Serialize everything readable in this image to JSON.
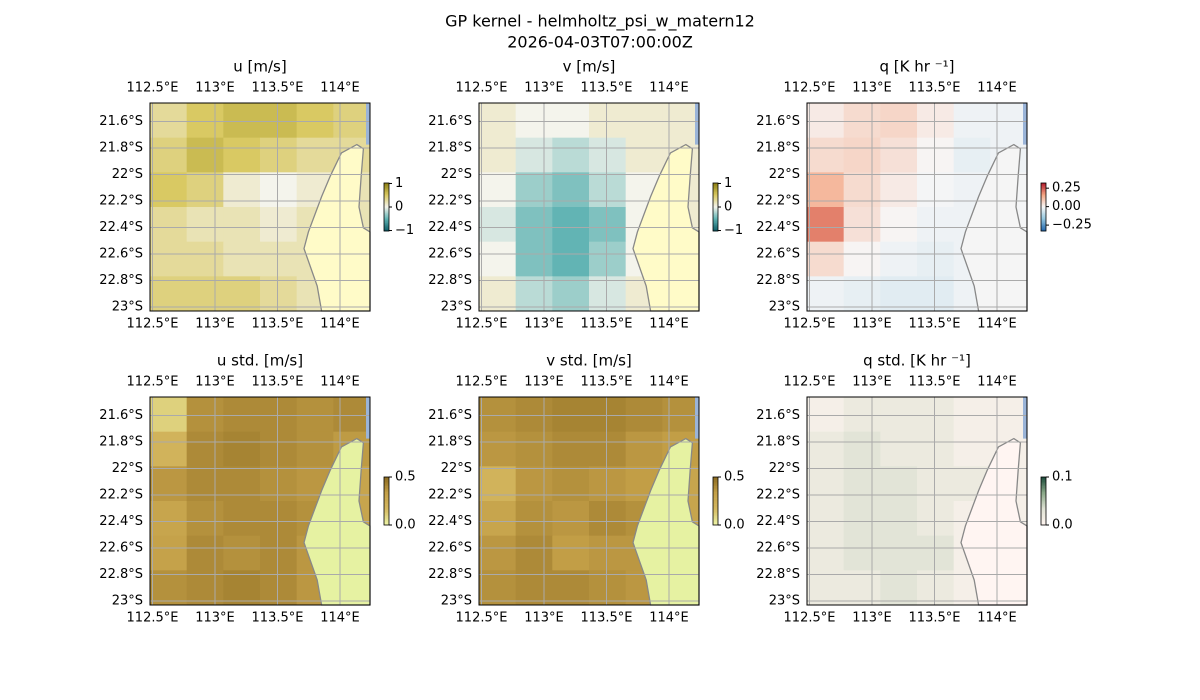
{
  "figure": {
    "title": "GP kernel - helmholtz_psi_w_matern12",
    "subtitle": "2026-04-03T07:00:00Z"
  },
  "chart_data": [
    {
      "type": "heatmap",
      "title": "u [m/s]",
      "land_color": "#fffbc8",
      "cmap": [
        "#0b5b66",
        "#5fb3b3",
        "#f4f4ec",
        "#d8c860",
        "#8a7d10"
      ],
      "clim": [
        -1.02,
        1.02
      ],
      "cticks": [
        {
          "value": 1,
          "label": "1"
        },
        0,
        {
          "value": -1,
          "label": "−1"
        }
      ],
      "xlim": [
        112.48,
        114.24
      ],
      "ylim": [
        -23.03,
        -21.46
      ],
      "xticks": [
        {
          "value": 112.5,
          "label": "112.5°E"
        },
        {
          "value": 113,
          "label": "113°E"
        },
        {
          "value": 113.5,
          "label": "113.5°E"
        },
        {
          "value": 114,
          "label": "114°E"
        }
      ],
      "yticks": [
        {
          "value": -21.6,
          "label": "21.6°S"
        },
        {
          "value": -21.8,
          "label": "21.8°S"
        },
        {
          "value": -22,
          "label": "22°S"
        },
        {
          "value": -22.2,
          "label": "22.2°S"
        },
        {
          "value": -22.4,
          "label": "22.4°S"
        },
        {
          "value": -22.6,
          "label": "22.6°S"
        },
        {
          "value": -22.8,
          "label": "22.8°S"
        },
        {
          "value": -23,
          "label": "23°S"
        }
      ],
      "values": [
        [
          0.3,
          0.5,
          0.6,
          0.6,
          0.5,
          0.4
        ],
        [
          0.4,
          0.6,
          0.5,
          0.4,
          0.3,
          0.3
        ],
        [
          0.5,
          0.4,
          0.1,
          0.0,
          0.1,
          0.2
        ],
        [
          0.3,
          0.2,
          0.2,
          0.1,
          0.2,
          0.2
        ],
        [
          0.3,
          0.3,
          0.2,
          0.2,
          0.2,
          0.2
        ],
        [
          0.4,
          0.4,
          0.4,
          0.3,
          0.2,
          0.2
        ]
      ]
    },
    {
      "type": "heatmap",
      "title": "v [m/s]",
      "land_color": "#fffbc8",
      "cmap": [
        "#0b5b66",
        "#5fb3b3",
        "#f4f4ec",
        "#d8c860",
        "#8a7d10"
      ],
      "clim": [
        -1.02,
        1.02
      ],
      "cticks": [
        {
          "value": 1,
          "label": "1"
        },
        0,
        {
          "value": -1,
          "label": "−1"
        }
      ],
      "xlim": [
        112.48,
        114.24
      ],
      "ylim": [
        -23.03,
        -21.46
      ],
      "xticks": [
        {
          "value": 112.5,
          "label": "112.5°E"
        },
        {
          "value": 113,
          "label": "113°E"
        },
        {
          "value": 113.5,
          "label": "113.5°E"
        },
        {
          "value": 114,
          "label": "114°E"
        }
      ],
      "yticks": [
        {
          "value": -21.6,
          "label": "21.6°S"
        },
        {
          "value": -21.8,
          "label": "21.8°S"
        },
        {
          "value": -22,
          "label": "22°S"
        },
        {
          "value": -22.2,
          "label": "22.2°S"
        },
        {
          "value": -22.4,
          "label": "22.4°S"
        },
        {
          "value": -22.6,
          "label": "22.6°S"
        },
        {
          "value": -22.8,
          "label": "22.8°S"
        },
        {
          "value": -23,
          "label": "23°S"
        }
      ],
      "values": [
        [
          0.1,
          0.0,
          0.0,
          0.1,
          0.1,
          0.1
        ],
        [
          0.1,
          -0.1,
          -0.2,
          -0.1,
          0.1,
          0.1
        ],
        [
          0.0,
          -0.3,
          -0.4,
          -0.2,
          0.0,
          0.1
        ],
        [
          -0.1,
          -0.4,
          -0.5,
          -0.4,
          0.0,
          0.1
        ],
        [
          0.0,
          -0.4,
          -0.5,
          -0.3,
          0.0,
          0.1
        ],
        [
          0.1,
          -0.2,
          -0.3,
          -0.1,
          0.1,
          0.1
        ]
      ]
    },
    {
      "type": "heatmap",
      "title": "q [K hr ⁻¹]",
      "land_color": "#f5f5f5",
      "cmap": [
        "#2166ac",
        "#92c5de",
        "#f7f7f7",
        "#f4a582",
        "#b2182b"
      ],
      "clim": [
        -0.33,
        0.32
      ],
      "cticks": [
        {
          "value": 0.25,
          "label": "0.25"
        },
        {
          "value": 0,
          "label": "0.00"
        },
        {
          "value": -0.25,
          "label": "−0.25"
        }
      ],
      "xlim": [
        112.48,
        114.24
      ],
      "ylim": [
        -23.03,
        -21.46
      ],
      "xticks": [
        {
          "value": 112.5,
          "label": "112.5°E"
        },
        {
          "value": 113,
          "label": "113°E"
        },
        {
          "value": 113.5,
          "label": "113.5°E"
        },
        {
          "value": 114,
          "label": "114°E"
        }
      ],
      "yticks": [
        {
          "value": -21.6,
          "label": "21.6°S"
        },
        {
          "value": -21.8,
          "label": "21.8°S"
        },
        {
          "value": -22,
          "label": "22°S"
        },
        {
          "value": -22.2,
          "label": "22.2°S"
        },
        {
          "value": -22.4,
          "label": "22.4°S"
        },
        {
          "value": -22.6,
          "label": "22.6°S"
        },
        {
          "value": -22.8,
          "label": "22.8°S"
        },
        {
          "value": -23,
          "label": "23°S"
        }
      ],
      "values": [
        [
          0.02,
          0.05,
          0.06,
          0.02,
          -0.02,
          -0.02
        ],
        [
          0.05,
          0.06,
          0.04,
          0.0,
          -0.03,
          -0.02
        ],
        [
          0.12,
          0.05,
          0.02,
          -0.01,
          -0.02,
          -0.01
        ],
        [
          0.2,
          0.04,
          0.0,
          -0.02,
          -0.02,
          -0.01
        ],
        [
          0.05,
          0.0,
          -0.02,
          -0.03,
          -0.02,
          -0.01
        ],
        [
          -0.02,
          -0.03,
          -0.04,
          -0.04,
          -0.02,
          -0.01
        ]
      ]
    },
    {
      "type": "heatmap",
      "title": "u std. [m/s]",
      "land_color": "#e6f2a2",
      "cmap": [
        "#eef6a8",
        "#d4b860",
        "#c4a048",
        "#8a6a20"
      ],
      "clim": [
        0,
        0.5
      ],
      "cticks": [
        {
          "value": 0.5,
          "label": "0.5"
        },
        {
          "value": 0,
          "label": "0.0"
        }
      ],
      "xlim": [
        112.48,
        114.24
      ],
      "ylim": [
        -23.03,
        -21.46
      ],
      "xticks": [
        {
          "value": 112.5,
          "label": "112.5°E"
        },
        {
          "value": 113,
          "label": "113°E"
        },
        {
          "value": 113.5,
          "label": "113.5°E"
        },
        {
          "value": 114,
          "label": "114°E"
        }
      ],
      "yticks": [
        {
          "value": -21.6,
          "label": "21.6°S"
        },
        {
          "value": -21.8,
          "label": "21.8°S"
        },
        {
          "value": -22,
          "label": "22°S"
        },
        {
          "value": -22.2,
          "label": "22.2°S"
        },
        {
          "value": -22.4,
          "label": "22.4°S"
        },
        {
          "value": -22.6,
          "label": "22.6°S"
        },
        {
          "value": -22.8,
          "label": "22.8°S"
        },
        {
          "value": -23,
          "label": "23°S"
        }
      ],
      "values": [
        [
          0.1,
          0.38,
          0.4,
          0.4,
          0.38,
          0.4
        ],
        [
          0.2,
          0.4,
          0.42,
          0.4,
          0.38,
          0.35
        ],
        [
          0.36,
          0.4,
          0.4,
          0.38,
          0.36,
          0.3
        ],
        [
          0.3,
          0.38,
          0.4,
          0.4,
          0.38,
          0.3
        ],
        [
          0.32,
          0.4,
          0.38,
          0.4,
          0.36,
          0.3
        ],
        [
          0.38,
          0.4,
          0.42,
          0.4,
          0.36,
          0.3
        ]
      ]
    },
    {
      "type": "heatmap",
      "title": "v std. [m/s]",
      "land_color": "#e6f2a2",
      "cmap": [
        "#eef6a8",
        "#d4b860",
        "#c4a048",
        "#8a6a20"
      ],
      "clim": [
        0,
        0.5
      ],
      "cticks": [
        {
          "value": 0.5,
          "label": "0.5"
        },
        {
          "value": 0,
          "label": "0.0"
        }
      ],
      "xlim": [
        112.48,
        114.24
      ],
      "ylim": [
        -23.03,
        -21.46
      ],
      "xticks": [
        {
          "value": 112.5,
          "label": "112.5°E"
        },
        {
          "value": 113,
          "label": "113°E"
        },
        {
          "value": 113.5,
          "label": "113.5°E"
        },
        {
          "value": 114,
          "label": "114°E"
        }
      ],
      "yticks": [
        {
          "value": -21.6,
          "label": "21.6°S"
        },
        {
          "value": -21.8,
          "label": "21.8°S"
        },
        {
          "value": -22,
          "label": "22°S"
        },
        {
          "value": -22.2,
          "label": "22.2°S"
        },
        {
          "value": -22.4,
          "label": "22.4°S"
        },
        {
          "value": -22.6,
          "label": "22.6°S"
        },
        {
          "value": -22.8,
          "label": "22.8°S"
        },
        {
          "value": -23,
          "label": "23°S"
        }
      ],
      "values": [
        [
          0.38,
          0.4,
          0.42,
          0.42,
          0.4,
          0.38
        ],
        [
          0.36,
          0.38,
          0.4,
          0.4,
          0.36,
          0.34
        ],
        [
          0.2,
          0.36,
          0.38,
          0.36,
          0.34,
          0.3
        ],
        [
          0.3,
          0.38,
          0.36,
          0.4,
          0.38,
          0.3
        ],
        [
          0.36,
          0.4,
          0.34,
          0.36,
          0.36,
          0.3
        ],
        [
          0.38,
          0.4,
          0.4,
          0.38,
          0.36,
          0.3
        ]
      ]
    },
    {
      "type": "heatmap",
      "title": "q std. [K hr ⁻¹]",
      "land_color": "#fff5f2",
      "cmap": [
        "#fff5f0",
        "#dfe2d4",
        "#8aa888",
        "#1a4a3a"
      ],
      "clim": [
        0,
        0.1
      ],
      "cticks": [
        {
          "value": 0.1,
          "label": "0.1"
        },
        {
          "value": 0,
          "label": "0.0"
        }
      ],
      "xlim": [
        112.48,
        114.24
      ],
      "ylim": [
        -23.03,
        -21.46
      ],
      "xticks": [
        {
          "value": 112.5,
          "label": "112.5°E"
        },
        {
          "value": 113,
          "label": "113°E"
        },
        {
          "value": 113.5,
          "label": "113.5°E"
        },
        {
          "value": 114,
          "label": "114°E"
        }
      ],
      "yticks": [
        {
          "value": -21.6,
          "label": "21.6°S"
        },
        {
          "value": -21.8,
          "label": "21.8°S"
        },
        {
          "value": -22,
          "label": "22°S"
        },
        {
          "value": -22.2,
          "label": "22.2°S"
        },
        {
          "value": -22.4,
          "label": "22.4°S"
        },
        {
          "value": -22.6,
          "label": "22.6°S"
        },
        {
          "value": -22.8,
          "label": "22.8°S"
        },
        {
          "value": -23,
          "label": "23°S"
        }
      ],
      "values": [
        [
          0.01,
          0.02,
          0.02,
          0.02,
          0.01,
          0.01
        ],
        [
          0.02,
          0.03,
          0.02,
          0.02,
          0.01,
          0.01
        ],
        [
          0.02,
          0.03,
          0.03,
          0.02,
          0.02,
          0.01
        ],
        [
          0.02,
          0.03,
          0.03,
          0.02,
          0.01,
          0.01
        ],
        [
          0.02,
          0.03,
          0.03,
          0.03,
          0.01,
          0.01
        ],
        [
          0.02,
          0.02,
          0.03,
          0.02,
          0.01,
          0.01
        ]
      ]
    }
  ]
}
